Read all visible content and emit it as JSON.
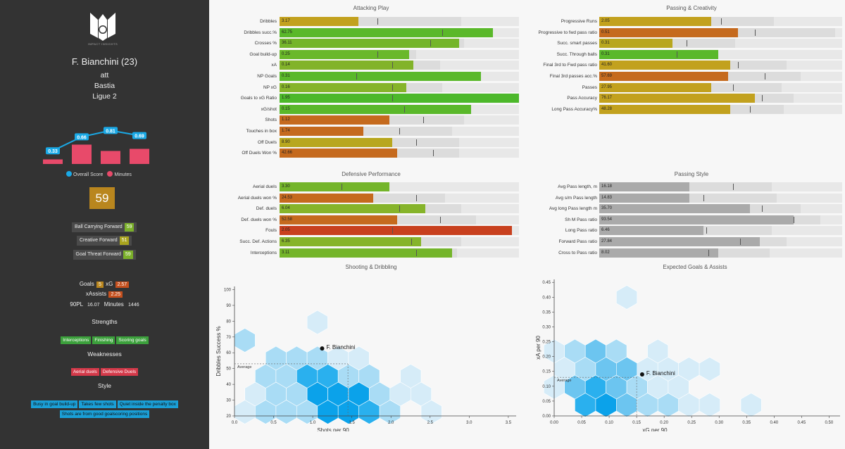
{
  "sidebar": {
    "logo_text": "IMPACT INSIGHTS",
    "player_name": "F. Bianchini (23)",
    "position": "att",
    "team": "Bastia",
    "league": "Ligue 2",
    "score_chart": {
      "overall": [
        0.33,
        0.66,
        0.81,
        0.69
      ],
      "minutes": [
        0.15,
        0.85,
        0.55,
        0.65
      ],
      "legend_overall": "Overall Score",
      "legend_minutes": "Minutes"
    },
    "overall_score": "59",
    "roles": [
      {
        "label": "Ball Carrying Forward",
        "score": "59",
        "color": "#7bb02a"
      },
      {
        "label": "Creative Forward",
        "score": "51",
        "color": "#a9a41e"
      },
      {
        "label": "Goal Threat Forward",
        "score": "59",
        "color": "#7bb02a"
      }
    ],
    "goals_label": "Goals",
    "goals": "5",
    "xg_label": "xG",
    "xg": "2.57",
    "xassists_label": "xAssists",
    "xassists": "2.25",
    "pl90_label": "90PL",
    "pl90": "16.07",
    "minutes_label": "Minutes",
    "minutes": "1446",
    "strengths_title": "Strengths",
    "strengths": [
      "Interceptions",
      "Finishing",
      "Scoring goals"
    ],
    "weaknesses_title": "Weaknesses",
    "weaknesses": [
      "Aerial duels",
      "Defensive Duels"
    ],
    "style_title": "Style",
    "style_row1": [
      "Busy in goal build-up",
      "Takes few shots",
      "Quiet inside the penalty box"
    ],
    "style_row2": [
      "Shots are from good goalscoring positions"
    ]
  },
  "panels": {
    "attacking": {
      "title": "Attacking Play",
      "metrics": [
        {
          "label": "Dribbles",
          "value": "3.17",
          "pct": 0.33,
          "back": 0.76,
          "tick": 0.41,
          "color": "#c2a11e"
        },
        {
          "label": "Dribbles succ.%",
          "value": "62.75",
          "pct": 0.89,
          "back": 0.89,
          "tick": 0.68,
          "color": "#5ab82a"
        },
        {
          "label": "Crosses %",
          "value": "36.11",
          "pct": 0.75,
          "back": 0.77,
          "tick": 0.63,
          "color": "#74b52a"
        },
        {
          "label": "Goal build-up",
          "value": "0.25",
          "pct": 0.54,
          "back": 0.57,
          "tick": 0.41,
          "color": "#6ab82a"
        },
        {
          "label": "xA",
          "value": "0.14",
          "pct": 0.56,
          "back": 0.67,
          "tick": 0.47,
          "color": "#82b32a"
        },
        {
          "label": "NP Goals",
          "value": "0.31",
          "pct": 0.84,
          "back": 0.84,
          "tick": 0.32,
          "color": "#5ab82a"
        },
        {
          "label": "NP xG",
          "value": "0.16",
          "pct": 0.53,
          "back": 0.68,
          "tick": 0.47,
          "color": "#86b42a"
        },
        {
          "label": "Goals to xG Ratio",
          "value": "1.95",
          "pct": 1.0,
          "back": 1.0,
          "tick": 0.47,
          "color": "#4cb82a"
        },
        {
          "label": "xG/shot",
          "value": "0.15",
          "pct": 0.8,
          "back": 0.8,
          "tick": 0.52,
          "color": "#5ab82a"
        },
        {
          "label": "Shots",
          "value": "1.12",
          "pct": 0.46,
          "back": 0.77,
          "tick": 0.6,
          "color": "#c56a1e"
        },
        {
          "label": "Touches in box",
          "value": "1.74",
          "pct": 0.35,
          "back": 0.72,
          "tick": 0.5,
          "color": "#c56a1e"
        },
        {
          "label": "Off Duels",
          "value": "8.90",
          "pct": 0.47,
          "back": 0.75,
          "tick": 0.57,
          "color": "#b8a71e"
        },
        {
          "label": "Off Duels Won %",
          "value": "42.66",
          "pct": 0.49,
          "back": 0.75,
          "tick": 0.64,
          "color": "#c56a1e"
        }
      ]
    },
    "passing_creativity": {
      "title": "Passing & Creativity",
      "metrics": [
        {
          "label": "Progressive Runs",
          "value": "2.05",
          "pct": 0.46,
          "back": 0.72,
          "tick": 0.5,
          "color": "#c2a11e"
        },
        {
          "label": "Progressive to fwd pass ratio",
          "value": "0.51",
          "pct": 0.57,
          "back": 0.97,
          "tick": 0.64,
          "color": "#c56a1e"
        },
        {
          "label": "Succ. smart passes",
          "value": "0.31",
          "pct": 0.3,
          "back": 0.56,
          "tick": 0.36,
          "color": "#b8a71e"
        },
        {
          "label": "Succ. Through balls",
          "value": "0.31",
          "pct": 0.49,
          "back": 0.49,
          "tick": 0.32,
          "color": "#5ab82a"
        },
        {
          "label": "Final 3rd to Fwd pass ratio",
          "value": "41.60",
          "pct": 0.54,
          "back": 0.77,
          "tick": 0.57,
          "color": "#c2a11e"
        },
        {
          "label": "Final 3rd passes acc.%",
          "value": "57.69",
          "pct": 0.53,
          "back": 0.83,
          "tick": 0.68,
          "color": "#c56a1e"
        },
        {
          "label": "Passes",
          "value": "27.95",
          "pct": 0.46,
          "back": 0.75,
          "tick": 0.55,
          "color": "#c2a11e"
        },
        {
          "label": "Pass Accuracy",
          "value": "76.17",
          "pct": 0.64,
          "back": 0.8,
          "tick": 0.67,
          "color": "#c2a11e"
        },
        {
          "label": "Long Pass Accuracy%",
          "value": "48.28",
          "pct": 0.54,
          "back": 0.76,
          "tick": 0.62,
          "color": "#c2a11e"
        }
      ]
    },
    "defensive": {
      "title": "Defensive Performance",
      "metrics": [
        {
          "label": "Aerial duels",
          "value": "3.30",
          "pct": 0.46,
          "back": 0.46,
          "tick": 0.26,
          "color": "#74b52a"
        },
        {
          "label": "Aerial duels won %",
          "value": "24.53",
          "pct": 0.39,
          "back": 0.69,
          "tick": 0.57,
          "color": "#c56a1e"
        },
        {
          "label": "Def. duels",
          "value": "6.04",
          "pct": 0.61,
          "back": 0.76,
          "tick": 0.5,
          "color": "#86b42a"
        },
        {
          "label": "Def. duels won %",
          "value": "52.58",
          "pct": 0.49,
          "back": 0.82,
          "tick": 0.67,
          "color": "#c56a1e"
        },
        {
          "label": "Fouls",
          "value": "2.05",
          "pct": 0.97,
          "back": 0.97,
          "tick": 0.47,
          "color": "#c8401e"
        },
        {
          "label": "Succ. Def. Actions",
          "value": "6.35",
          "pct": 0.59,
          "back": 0.76,
          "tick": 0.55,
          "color": "#86b42a"
        },
        {
          "label": "Interceptions",
          "value": "3.11",
          "pct": 0.72,
          "back": 0.74,
          "tick": 0.57,
          "color": "#74b52a"
        }
      ]
    },
    "passing_style": {
      "title": "Passing Style",
      "metrics": [
        {
          "label": "Avg Pass length, m",
          "value": "16.18",
          "pct": 0.37,
          "back": 0.71,
          "tick": 0.55,
          "color": "#aaaaaa"
        },
        {
          "label": "Avg s/m Pass length",
          "value": "14.83",
          "pct": 0.37,
          "back": 0.73,
          "tick": 0.43,
          "color": "#aaaaaa"
        },
        {
          "label": "Avg long Pass length m",
          "value": "35.70",
          "pct": 0.62,
          "back": 0.83,
          "tick": 0.67,
          "color": "#aaaaaa"
        },
        {
          "label": "Sh M Pass ratio",
          "value": "93.54",
          "pct": 0.8,
          "back": 0.91,
          "tick": 0.8,
          "color": "#aaaaaa"
        },
        {
          "label": "Long Pass ratio",
          "value": "6.46",
          "pct": 0.43,
          "back": 0.71,
          "tick": 0.44,
          "color": "#aaaaaa"
        },
        {
          "label": "Forward Pass ratio",
          "value": "27.84",
          "pct": 0.66,
          "back": 0.77,
          "tick": 0.58,
          "color": "#aaaaaa"
        },
        {
          "label": "Cross to Pass ratio",
          "value": "8.02",
          "pct": 0.49,
          "back": 0.7,
          "tick": 0.45,
          "color": "#aaaaaa"
        }
      ]
    }
  },
  "scatter1": {
    "title": "Shooting & Dribbling",
    "xlabel": "Shots per 90",
    "ylabel": "Dribbles Success %",
    "player": "F. Bianchini",
    "player_x": 1.12,
    "player_y": 62.75,
    "avg_x": 1.45,
    "avg_y": 53,
    "avg_label": "Average",
    "xticks": [
      "0.0",
      "0.5",
      "1.0",
      "1.5",
      "2.0",
      "2.5",
      "3.0",
      "3.5"
    ],
    "yticks": [
      "100",
      "90",
      "80",
      "70",
      "60",
      "50",
      "40",
      "30",
      "20"
    ],
    "xlim": [
      0,
      3.6
    ],
    "ylim": [
      20,
      102
    ]
  },
  "scatter2": {
    "title": "Expected Goals & Assists",
    "xlabel": "xG per 90",
    "ylabel": "xA per 90",
    "player": "F. Bianchini",
    "player_x": 0.16,
    "player_y": 0.14,
    "avg_x": 0.15,
    "avg_y": 0.13,
    "avg_label": "Average",
    "xticks": [
      "0.00",
      "0.05",
      "0.10",
      "0.15",
      "0.20",
      "0.25",
      "0.30",
      "0.35",
      "0.40",
      "0.45",
      "0.50"
    ],
    "yticks": [
      "0.45",
      "0.40",
      "0.35",
      "0.30",
      "0.25",
      "0.20",
      "0.15",
      "0.10",
      "0.05",
      "0.00"
    ],
    "xlim": [
      0,
      0.52
    ],
    "ylim": [
      0,
      0.46
    ]
  }
}
